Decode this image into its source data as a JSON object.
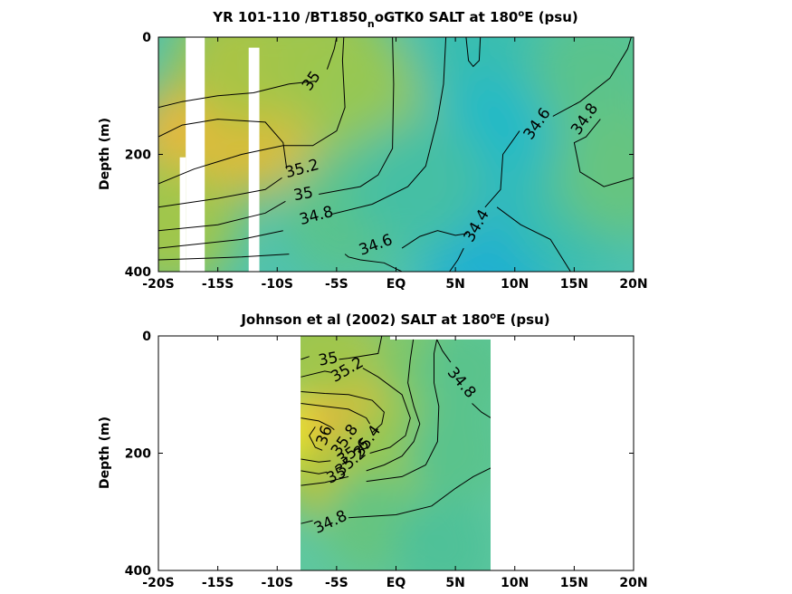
{
  "chart_data": [
    {
      "type": "heatmap",
      "title": {
        "main": "YR 101-110 /BT1850",
        "sub": "n",
        "rest": "oGTK0 SALT at 180",
        "sup": "o",
        "end": "E (psu)"
      },
      "ylabel": "Depth (m)",
      "xlim": [
        -20,
        20
      ],
      "ylim": [
        0,
        400
      ],
      "xticks": [
        {
          "v": -20,
          "label": "-20S"
        },
        {
          "v": -15,
          "label": "-15S"
        },
        {
          "v": -10,
          "label": "-10S"
        },
        {
          "v": -5,
          "label": "-5S"
        },
        {
          "v": 0,
          "label": "EQ"
        },
        {
          "v": 5,
          "label": "5N"
        },
        {
          "v": 10,
          "label": "10N"
        },
        {
          "v": 15,
          "label": "15N"
        },
        {
          "v": 20,
          "label": "20N"
        }
      ],
      "yticks": [
        {
          "v": 0,
          "label": "0"
        },
        {
          "v": 200,
          "label": "200"
        },
        {
          "v": 400,
          "label": "400"
        }
      ],
      "data_extent_x": [
        -20,
        20
      ],
      "masked_columns": [
        {
          "x": [
            -17.7,
            -16.1
          ],
          "depth": [
            0,
            400
          ]
        },
        {
          "x": [
            -18.2,
            -17.7
          ],
          "depth": [
            205,
            400
          ]
        },
        {
          "x": [
            -12.4,
            -11.5
          ],
          "depth": [
            18,
            400
          ]
        }
      ],
      "fields": [
        {
          "x": -16.5,
          "d": 180,
          "v": 35.55
        },
        {
          "x": -10.5,
          "d": 150,
          "v": 35.4
        },
        {
          "x": -13,
          "d": 40,
          "v": 35.05
        },
        {
          "x": -19,
          "d": 320,
          "v": 35.0
        },
        {
          "x": -6,
          "d": 40,
          "v": 35.0
        },
        {
          "x": -2,
          "d": 120,
          "v": 34.95
        },
        {
          "x": -4,
          "d": 300,
          "v": 34.7
        },
        {
          "x": 7,
          "d": 40,
          "v": 34.55
        },
        {
          "x": 9,
          "d": 180,
          "v": 34.45
        },
        {
          "x": 8,
          "d": 380,
          "v": 34.3
        },
        {
          "x": 15,
          "d": 300,
          "v": 34.55
        },
        {
          "x": 17,
          "d": 60,
          "v": 34.7
        },
        {
          "x": 19,
          "d": 230,
          "v": 34.75
        },
        {
          "x": 2,
          "d": 250,
          "v": 34.6
        }
      ],
      "contour_labels": [
        {
          "text": "35",
          "x": -7.1,
          "d": 75,
          "angle": -55
        },
        {
          "text": "35.2",
          "x": -7.9,
          "d": 225,
          "angle": -15
        },
        {
          "text": "35",
          "x": -7.8,
          "d": 268,
          "angle": -10
        },
        {
          "text": "34.8",
          "x": -6.7,
          "d": 305,
          "angle": -15
        },
        {
          "text": "34.6",
          "x": -1.7,
          "d": 355,
          "angle": -20
        },
        {
          "text": "34.4",
          "x": 6.8,
          "d": 322,
          "angle": -60
        },
        {
          "text": "34.6",
          "x": 11.9,
          "d": 148,
          "angle": -55
        },
        {
          "text": "34.8",
          "x": 15.9,
          "d": 140,
          "angle": -55
        }
      ],
      "contour_lines": [
        [
          [
            -20,
            120
          ],
          [
            -18,
            110
          ],
          [
            -15,
            100
          ],
          [
            -12,
            95
          ],
          [
            -9,
            80
          ],
          [
            -6.8,
            75
          ]
        ],
        [
          [
            -5.8,
            55
          ],
          [
            -5.2,
            20
          ],
          [
            -5.0,
            0
          ]
        ],
        [
          [
            -20,
            250
          ],
          [
            -17,
            225
          ],
          [
            -13,
            200
          ],
          [
            -9.5,
            185
          ],
          [
            -7,
            185
          ],
          [
            -5,
            160
          ],
          [
            -4.3,
            120
          ],
          [
            -4.5,
            40
          ],
          [
            -4.4,
            0
          ]
        ],
        [
          [
            -20,
            170
          ],
          [
            -18,
            150
          ],
          [
            -15,
            140
          ],
          [
            -11,
            145
          ],
          [
            -9.5,
            180
          ],
          [
            -9.2,
            225
          ]
        ],
        [
          [
            -20,
            290
          ],
          [
            -15,
            275
          ],
          [
            -11,
            260
          ],
          [
            -9.6,
            240
          ]
        ],
        [
          [
            -20,
            330
          ],
          [
            -15,
            320
          ],
          [
            -11,
            300
          ],
          [
            -9.3,
            280
          ]
        ],
        [
          [
            -20,
            360
          ],
          [
            -13,
            345
          ],
          [
            -9.5,
            330
          ]
        ],
        [
          [
            -20,
            380
          ],
          [
            -13,
            375
          ],
          [
            -9.0,
            370
          ]
        ],
        [
          [
            -6.5,
            268
          ],
          [
            -3,
            255
          ],
          [
            -1.5,
            235
          ],
          [
            -0.3,
            190
          ],
          [
            -0.2,
            80
          ],
          [
            -0.3,
            0
          ]
        ],
        [
          [
            -5.4,
            302
          ],
          [
            -2,
            285
          ],
          [
            1,
            255
          ],
          [
            2.5,
            220
          ],
          [
            3.5,
            140
          ],
          [
            4,
            80
          ],
          [
            4.2,
            0
          ]
        ],
        [
          [
            -4.3,
            370
          ],
          [
            -4,
            375
          ],
          [
            -3,
            380
          ],
          [
            -1,
            385
          ],
          [
            0,
            395
          ],
          [
            0.5,
            400
          ]
        ],
        [
          [
            0.5,
            360
          ],
          [
            2,
            340
          ],
          [
            3.5,
            330
          ],
          [
            5,
            338
          ],
          [
            6,
            335
          ]
        ],
        [
          [
            4.5,
            400
          ],
          [
            5.2,
            380
          ],
          [
            5.7,
            360
          ]
        ],
        [
          [
            7.5,
            290
          ],
          [
            8.8,
            260
          ],
          [
            9,
            200
          ],
          [
            10.4,
            160
          ]
        ],
        [
          [
            8.5,
            290
          ],
          [
            10.5,
            320
          ],
          [
            13,
            345
          ],
          [
            14.7,
            400
          ]
        ],
        [
          [
            5.9,
            0
          ],
          [
            6.1,
            40
          ],
          [
            6.5,
            50
          ],
          [
            7.0,
            40
          ],
          [
            7.1,
            0
          ]
        ],
        [
          [
            13.2,
            135
          ],
          [
            15.5,
            110
          ],
          [
            18,
            70
          ],
          [
            19.5,
            20
          ],
          [
            19.8,
            0
          ]
        ],
        [
          [
            17.2,
            140
          ],
          [
            16,
            170
          ],
          [
            15,
            180
          ],
          [
            15.5,
            230
          ],
          [
            17.5,
            255
          ],
          [
            20,
            240
          ]
        ]
      ]
    },
    {
      "type": "heatmap",
      "title": {
        "main": "Johnson et al (2002) SALT at 180",
        "sup": "o",
        "end": "E (psu)"
      },
      "ylabel": "Depth (m)",
      "xlim": [
        -20,
        20
      ],
      "ylim": [
        0,
        400
      ],
      "xticks": [
        {
          "v": -20,
          "label": "-20S"
        },
        {
          "v": -15,
          "label": "-15S"
        },
        {
          "v": -10,
          "label": "-10S"
        },
        {
          "v": -5,
          "label": "-5S"
        },
        {
          "v": 0,
          "label": "EQ"
        },
        {
          "v": 5,
          "label": "5N"
        },
        {
          "v": 10,
          "label": "10N"
        },
        {
          "v": 15,
          "label": "15N"
        },
        {
          "v": 20,
          "label": "20N"
        }
      ],
      "yticks": [
        {
          "v": 0,
          "label": "0"
        },
        {
          "v": 200,
          "label": "200"
        },
        {
          "v": 400,
          "label": "400"
        }
      ],
      "data_extent_x": [
        -8,
        8
      ],
      "data_top_notch": {
        "x": [
          -0.5,
          8
        ],
        "depth": [
          0,
          6
        ]
      },
      "fields": [
        {
          "x": -6.5,
          "d": 175,
          "v": 36.1
        },
        {
          "x": -4,
          "d": 130,
          "v": 35.6
        },
        {
          "x": -3,
          "d": 60,
          "v": 35.3
        },
        {
          "x": -6.5,
          "d": 30,
          "v": 35.0
        },
        {
          "x": -5,
          "d": 240,
          "v": 35.1
        },
        {
          "x": 0,
          "d": 200,
          "v": 34.95
        },
        {
          "x": 2,
          "d": 40,
          "v": 34.85
        },
        {
          "x": 6,
          "d": 60,
          "v": 34.7
        },
        {
          "x": 5,
          "d": 200,
          "v": 34.7
        },
        {
          "x": -2,
          "d": 320,
          "v": 34.75
        },
        {
          "x": 4,
          "d": 360,
          "v": 34.65
        }
      ],
      "contour_labels": [
        {
          "text": "35",
          "x": -5.7,
          "d": 40,
          "angle": -10
        },
        {
          "text": "35.2",
          "x": -4.1,
          "d": 58,
          "angle": -30
        },
        {
          "text": "34.8",
          "x": 5.5,
          "d": 80,
          "angle": 50
        },
        {
          "text": "36",
          "x": -6.0,
          "d": 170,
          "angle": -70
        },
        {
          "text": "35.8",
          "x": -4.3,
          "d": 178,
          "angle": -55
        },
        {
          "text": "35.4",
          "x": -2.4,
          "d": 180,
          "angle": -55
        },
        {
          "text": "35.6",
          "x": -3.6,
          "d": 198,
          "angle": -35
        },
        {
          "text": "35.2",
          "x": -3.8,
          "d": 215,
          "angle": -40
        },
        {
          "text": "35",
          "x": -5.0,
          "d": 238,
          "angle": -25
        },
        {
          "text": "34.8",
          "x": -5.5,
          "d": 318,
          "angle": -25
        }
      ],
      "contour_lines": [
        [
          [
            -8,
            40
          ],
          [
            -7.3,
            35
          ]
        ],
        [
          [
            -4.8,
            40
          ],
          [
            -4,
            38
          ],
          [
            -1.5,
            30
          ],
          [
            -1.2,
            0
          ]
        ],
        [
          [
            -8,
            70
          ],
          [
            -6,
            60
          ],
          [
            -5.5,
            62
          ]
        ],
        [
          [
            -2.8,
            55
          ],
          [
            -1.5,
            70
          ],
          [
            0.5,
            100
          ],
          [
            1.2,
            140
          ],
          [
            0.8,
            170
          ],
          [
            -0.5,
            190
          ],
          [
            -2.2,
            200
          ]
        ],
        [
          [
            -8,
            95
          ],
          [
            -6,
            98
          ],
          [
            -4,
            100
          ],
          [
            -2,
            110
          ],
          [
            -1,
            130
          ],
          [
            -1.2,
            150
          ],
          [
            -2,
            165
          ]
        ],
        [
          [
            -8,
            115
          ],
          [
            -6,
            120
          ],
          [
            -4,
            125
          ],
          [
            -2.5,
            140
          ],
          [
            -2.2,
            150
          ]
        ],
        [
          [
            -8,
            140
          ],
          [
            -6.5,
            145
          ],
          [
            -5.5,
            155
          ],
          [
            -5.2,
            160
          ]
        ],
        [
          [
            -6.8,
            155
          ],
          [
            -7.3,
            170
          ],
          [
            -6.8,
            190
          ],
          [
            -6.2,
            195
          ]
        ],
        [
          [
            -8,
            210
          ],
          [
            -6.5,
            215
          ],
          [
            -5.5,
            213
          ]
        ],
        [
          [
            -8,
            230
          ],
          [
            -6.5,
            235
          ],
          [
            -5.8,
            232
          ]
        ],
        [
          [
            -8,
            255
          ],
          [
            -6,
            250
          ],
          [
            -4,
            240
          ]
        ],
        [
          [
            -2.5,
            230
          ],
          [
            -1,
            220
          ],
          [
            0.5,
            205
          ],
          [
            1.5,
            180
          ],
          [
            2,
            150
          ],
          [
            1.5,
            120
          ],
          [
            1,
            80
          ],
          [
            1.2,
            40
          ],
          [
            1.5,
            0
          ]
        ],
        [
          [
            -2.5,
            248
          ],
          [
            0.5,
            240
          ],
          [
            2.5,
            220
          ],
          [
            3.5,
            180
          ],
          [
            3.6,
            120
          ],
          [
            3.2,
            80
          ],
          [
            3.2,
            30
          ],
          [
            3.5,
            0
          ]
        ],
        [
          [
            -8,
            320
          ],
          [
            -7,
            315
          ]
        ],
        [
          [
            -4.0,
            310
          ],
          [
            0,
            305
          ],
          [
            3,
            290
          ],
          [
            5,
            260
          ],
          [
            6.5,
            240
          ],
          [
            8,
            225
          ]
        ],
        [
          [
            6.4,
            115
          ],
          [
            7.2,
            130
          ],
          [
            8,
            140
          ]
        ],
        [
          [
            3.3,
            0
          ],
          [
            3.9,
            25
          ],
          [
            4.6,
            45
          ]
        ]
      ]
    }
  ]
}
